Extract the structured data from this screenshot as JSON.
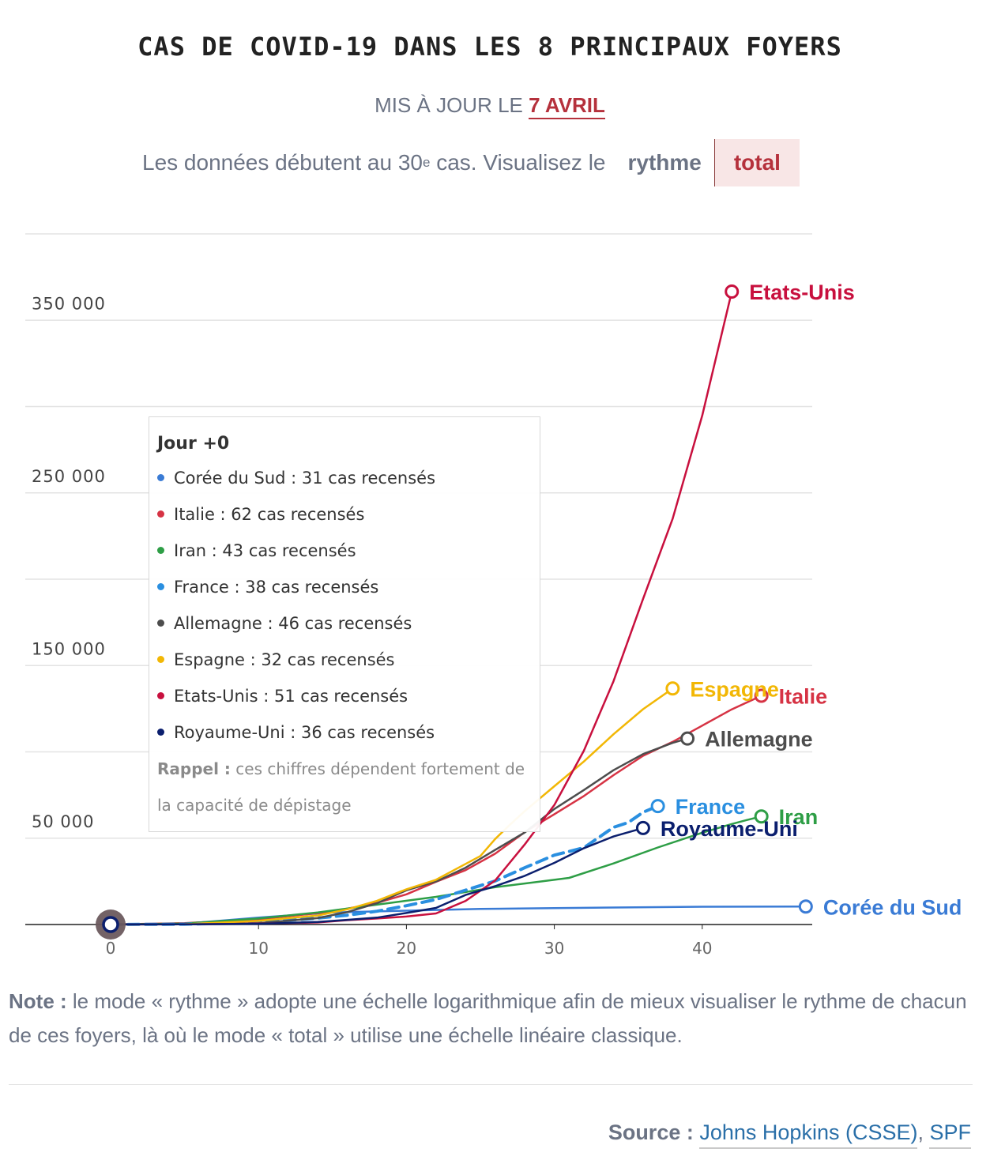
{
  "header": {
    "title": "CAS DE COVID-19 DANS LES 8 PRINCIPAUX FOYERS",
    "updated_prefix": "MIS À JOUR LE",
    "updated_date": "7 AVRIL",
    "intro_text": "Les données débutent au 30",
    "intro_sup": "e",
    "intro_suffix": " cas. Visualisez le",
    "toggle": {
      "rythme": "rythme",
      "total": "total",
      "selected": "total"
    }
  },
  "tooltip": {
    "title": "Jour +0",
    "rows": [
      {
        "text": "Corée du Sud : 31 cas recensés",
        "color": "#3a7bd5"
      },
      {
        "text": "Italie : 62 cas recensés",
        "color": "#d63344"
      },
      {
        "text": "Iran : 43 cas recensés",
        "color": "#2e9e46"
      },
      {
        "text": "France : 38 cas recensés",
        "color": "#2a8fe0"
      },
      {
        "text": "Allemagne : 46 cas recensés",
        "color": "#4d4d4d"
      },
      {
        "text": "Espagne : 32 cas recensés",
        "color": "#f2b705"
      },
      {
        "text": "Etats-Unis : 51 cas recensés",
        "color": "#c8103e"
      },
      {
        "text": "Royaume-Uni : 36 cas recensés",
        "color": "#0b1f6e"
      }
    ],
    "note_label": "Rappel :",
    "note_text": " ces chiffres dépendent fortement de la capacité de dépistage"
  },
  "chart_data": {
    "type": "line",
    "xlabel": "",
    "ylabel": "",
    "xlim": [
      -5,
      47
    ],
    "ylim": [
      0,
      400000
    ],
    "x_ticks": [
      0,
      10,
      20,
      30,
      40
    ],
    "y_ticks": [
      0,
      50000,
      100000,
      150000,
      200000,
      250000,
      300000,
      350000,
      400000
    ],
    "y_tick_labels": [
      {
        "value": 50000,
        "label": "50 000"
      },
      {
        "value": 150000,
        "label": "150 000"
      },
      {
        "value": 250000,
        "label": "250 000"
      },
      {
        "value": 350000,
        "label": "350 000"
      }
    ],
    "grid": true,
    "series": [
      {
        "name": "Corée du Sud",
        "color": "#3a7bd5",
        "dashed": false,
        "points": [
          [
            0,
            31
          ],
          [
            5,
            500
          ],
          [
            10,
            4000
          ],
          [
            15,
            7000
          ],
          [
            20,
            8000
          ],
          [
            25,
            9000
          ],
          [
            30,
            9500
          ],
          [
            40,
            10300
          ],
          [
            47,
            10400
          ]
        ]
      },
      {
        "name": "Italie",
        "color": "#d63344",
        "dashed": false,
        "points": [
          [
            0,
            62
          ],
          [
            5,
            800
          ],
          [
            10,
            3000
          ],
          [
            15,
            7500
          ],
          [
            18,
            12500
          ],
          [
            20,
            17500
          ],
          [
            22,
            24700
          ],
          [
            24,
            31500
          ],
          [
            26,
            41000
          ],
          [
            28,
            53500
          ],
          [
            30,
            63900
          ],
          [
            32,
            74400
          ],
          [
            34,
            86500
          ],
          [
            36,
            97700
          ],
          [
            38,
            105800
          ],
          [
            40,
            115200
          ],
          [
            42,
            124600
          ],
          [
            44,
            132500
          ]
        ]
      },
      {
        "name": "Iran",
        "color": "#2e9e46",
        "dashed": false,
        "points": [
          [
            0,
            43
          ],
          [
            5,
            600
          ],
          [
            10,
            3500
          ],
          [
            14,
            7000
          ],
          [
            18,
            11500
          ],
          [
            22,
            16000
          ],
          [
            26,
            21600
          ],
          [
            29,
            24800
          ],
          [
            31,
            27000
          ],
          [
            34,
            35400
          ],
          [
            37,
            44600
          ],
          [
            40,
            53200
          ],
          [
            42,
            58200
          ],
          [
            43,
            60500
          ],
          [
            44,
            62600
          ]
        ]
      },
      {
        "name": "France",
        "color": "#2a8fe0",
        "dashed": true,
        "points": [
          [
            0,
            38
          ],
          [
            5,
            200
          ],
          [
            10,
            1100
          ],
          [
            14,
            3700
          ],
          [
            16,
            5400
          ],
          [
            18,
            7700
          ],
          [
            20,
            10900
          ],
          [
            22,
            14500
          ],
          [
            24,
            19900
          ],
          [
            26,
            25200
          ],
          [
            28,
            32900
          ],
          [
            30,
            40200
          ],
          [
            32,
            44500
          ],
          [
            34,
            56300
          ],
          [
            35,
            59100
          ],
          [
            36,
            65000
          ],
          [
            37,
            68600
          ]
        ]
      },
      {
        "name": "Allemagne",
        "color": "#4d4d4d",
        "dashed": false,
        "points": [
          [
            0,
            46
          ],
          [
            5,
            100
          ],
          [
            10,
            800
          ],
          [
            14,
            3700
          ],
          [
            16,
            7200
          ],
          [
            18,
            12300
          ],
          [
            20,
            19800
          ],
          [
            22,
            24900
          ],
          [
            24,
            32900
          ],
          [
            26,
            43200
          ],
          [
            28,
            53300
          ],
          [
            30,
            66900
          ],
          [
            32,
            77900
          ],
          [
            34,
            89400
          ],
          [
            36,
            98700
          ],
          [
            38,
            105200
          ],
          [
            39,
            107700
          ]
        ]
      },
      {
        "name": "Espagne",
        "color": "#f2b705",
        "dashed": false,
        "points": [
          [
            0,
            32
          ],
          [
            5,
            200
          ],
          [
            10,
            2100
          ],
          [
            14,
            5200
          ],
          [
            16,
            8800
          ],
          [
            18,
            13700
          ],
          [
            20,
            20400
          ],
          [
            22,
            25900
          ],
          [
            24,
            35100
          ],
          [
            25,
            39700
          ],
          [
            26,
            49500
          ],
          [
            27,
            57800
          ],
          [
            28,
            65700
          ],
          [
            30,
            80100
          ],
          [
            32,
            94400
          ],
          [
            34,
            110200
          ],
          [
            36,
            124700
          ],
          [
            38,
            136700
          ]
        ]
      },
      {
        "name": "Etats-Unis",
        "color": "#c8103e",
        "dashed": false,
        "points": [
          [
            0,
            51
          ],
          [
            5,
            100
          ],
          [
            10,
            500
          ],
          [
            14,
            1200
          ],
          [
            16,
            2500
          ],
          [
            18,
            3500
          ],
          [
            20,
            4600
          ],
          [
            22,
            6400
          ],
          [
            24,
            13700
          ],
          [
            26,
            25500
          ],
          [
            28,
            46400
          ],
          [
            30,
            69200
          ],
          [
            32,
            100700
          ],
          [
            34,
            140900
          ],
          [
            36,
            188600
          ],
          [
            38,
            235100
          ],
          [
            40,
            294800
          ],
          [
            42,
            366600
          ]
        ]
      },
      {
        "name": "Royaume-Uni",
        "color": "#0b1f6e",
        "dashed": false,
        "points": [
          [
            0,
            36
          ],
          [
            5,
            150
          ],
          [
            10,
            400
          ],
          [
            14,
            1500
          ],
          [
            16,
            2700
          ],
          [
            18,
            4000
          ],
          [
            20,
            6700
          ],
          [
            22,
            9600
          ],
          [
            24,
            17100
          ],
          [
            26,
            22200
          ],
          [
            28,
            28200
          ],
          [
            30,
            35700
          ],
          [
            32,
            44200
          ],
          [
            34,
            51000
          ],
          [
            36,
            55900
          ]
        ]
      }
    ],
    "end_labels": [
      {
        "series": "Etats-Unis",
        "text": "Etats-Unis"
      },
      {
        "series": "Espagne",
        "text": "Espagne"
      },
      {
        "series": "Italie",
        "text": "Italie"
      },
      {
        "series": "Allemagne",
        "text": "Allemagne"
      },
      {
        "series": "France",
        "text": "France"
      },
      {
        "series": "Iran",
        "text": "Iran"
      },
      {
        "series": "Royaume-Uni",
        "text": "Royaume-Uni"
      },
      {
        "series": "Corée du Sud",
        "text": "Corée du Sud"
      }
    ],
    "hover_day": 0
  },
  "footer": {
    "note_label": "Note :",
    "note_text": " le mode « rythme » adopte une échelle logarithmique afin de mieux visualiser le rythme de chacun de ces foyers, là où le mode « total » utilise une échelle linéaire classique.",
    "source_label": "Source :",
    "source_links": [
      "Johns Hopkins (CSSE)",
      "SPF"
    ],
    "source_separator": ", "
  }
}
